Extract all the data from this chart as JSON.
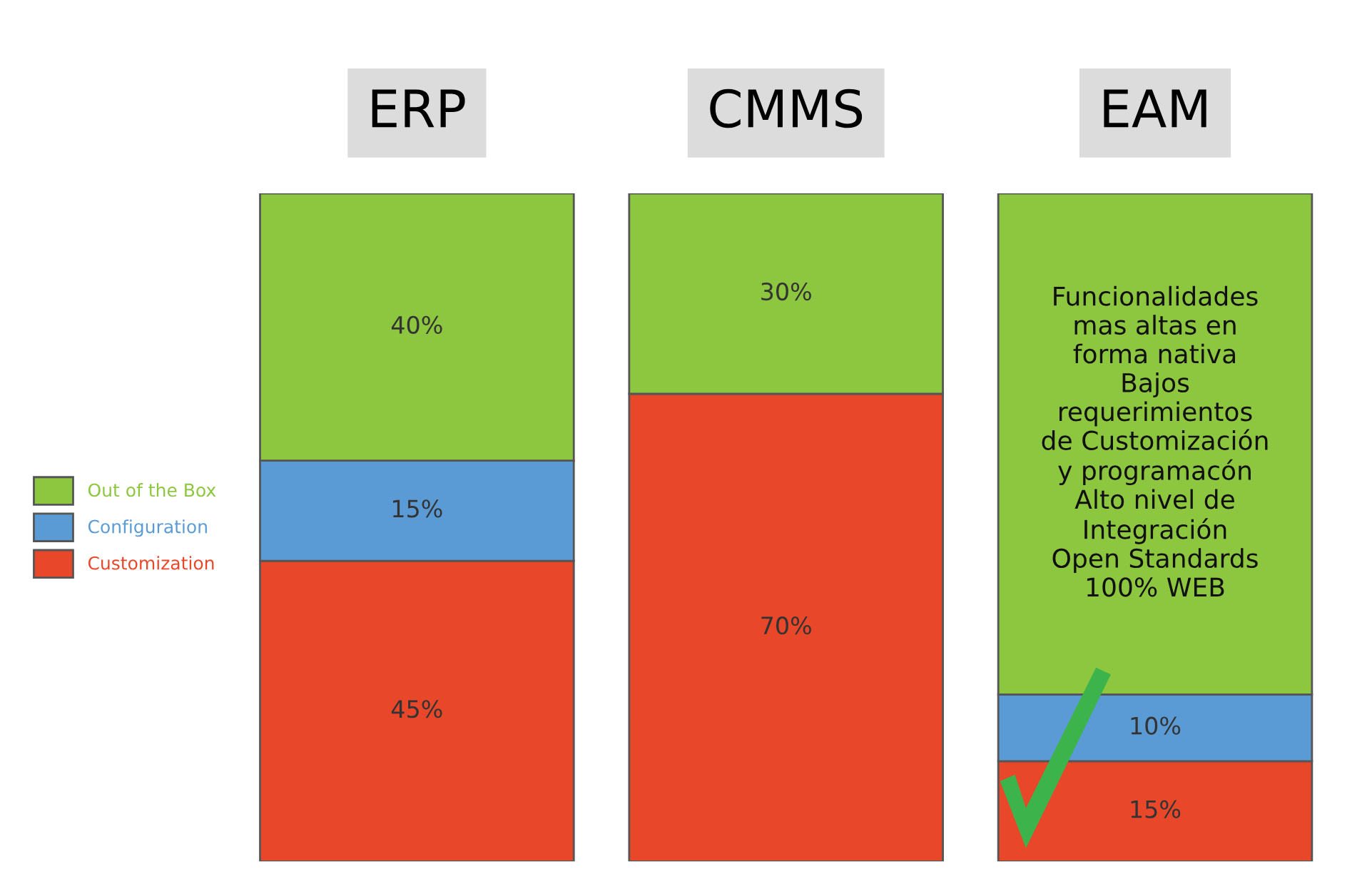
{
  "chart_data": {
    "type": "bar",
    "stacked": true,
    "categories": [
      "ERP",
      "CMMS",
      "EAM"
    ],
    "series": [
      {
        "name": "Customization",
        "color": "#e8472a",
        "values": [
          45,
          70,
          15
        ],
        "value_labels": [
          "45%",
          "70%",
          "15%"
        ]
      },
      {
        "name": "Configuration",
        "color": "#5b9bd5",
        "values": [
          15,
          0,
          10
        ],
        "value_labels": [
          "15%",
          null,
          "10%"
        ]
      },
      {
        "name": "Out of the Box",
        "color": "#8dc63f",
        "values": [
          40,
          30,
          75
        ],
        "value_labels": [
          "40%",
          "30%",
          null
        ]
      }
    ],
    "legend": "left",
    "annotations": [
      "Funcionalidades\nmas altas en\nforma nativa\nBajos\nrequerimientos\nde Customización\ny programacón\nAlto nivel de\nIntegración\nOpen Standards\n100% WEB"
    ]
  }
}
